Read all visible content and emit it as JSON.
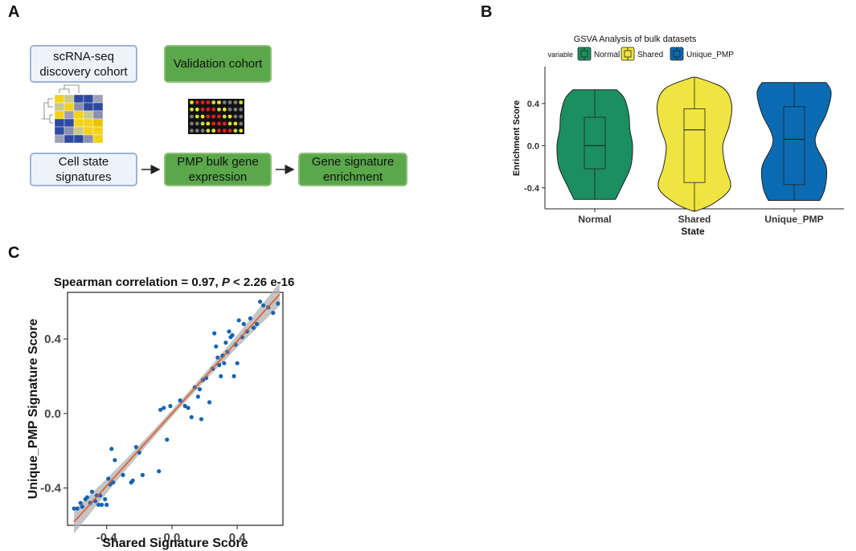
{
  "panels": {
    "a": "A",
    "b": "B",
    "c": "C"
  },
  "workflow": {
    "box1": "scRNA-seq discovery cohort",
    "box2": "Validation cohort",
    "box3": "Cell state signatures",
    "box4": "PMP bulk gene expression",
    "box5": "Gene signature enrichment"
  },
  "chart_data": [
    {
      "type": "violin",
      "title": "GSVA Analysis of bulk datasets",
      "legend_title": "variable",
      "legend_position": "top",
      "xlabel": "State",
      "ylabel": "Enrichment Score",
      "categories": [
        "Normal",
        "Shared",
        "Unique_PMP"
      ],
      "colors": [
        "#1b8f5f",
        "#f0e442",
        "#0a6bb3"
      ],
      "ylim": [
        -0.6,
        0.75
      ],
      "yticks": [
        -0.4,
        0.0,
        0.4
      ],
      "ytick_labels": [
        "-0.4",
        "0.0",
        "0.4"
      ],
      "series": [
        {
          "name": "Normal",
          "min": -0.51,
          "q1": -0.22,
          "median": 0.0,
          "q3": 0.27,
          "max": 0.53,
          "density": [
            [
              -0.51,
              0.55
            ],
            [
              -0.4,
              0.7
            ],
            [
              -0.2,
              0.95
            ],
            [
              0.0,
              1.0
            ],
            [
              0.15,
              0.93
            ],
            [
              0.3,
              0.9
            ],
            [
              0.45,
              0.78
            ],
            [
              0.53,
              0.58
            ]
          ]
        },
        {
          "name": "Shared",
          "min": -0.62,
          "q1": -0.35,
          "median": 0.15,
          "q3": 0.35,
          "max": 0.65,
          "density": [
            [
              -0.62,
              0.05
            ],
            [
              -0.55,
              0.5
            ],
            [
              -0.4,
              0.95
            ],
            [
              -0.2,
              0.82
            ],
            [
              0.0,
              0.75
            ],
            [
              0.2,
              0.93
            ],
            [
              0.4,
              0.98
            ],
            [
              0.55,
              0.75
            ],
            [
              0.65,
              0.05
            ]
          ]
        },
        {
          "name": "Unique_PMP",
          "min": -0.52,
          "q1": -0.37,
          "median": 0.06,
          "q3": 0.37,
          "max": 0.6,
          "density": [
            [
              -0.52,
              0.68
            ],
            [
              -0.4,
              0.82
            ],
            [
              -0.2,
              0.85
            ],
            [
              0.0,
              0.58
            ],
            [
              0.12,
              0.6
            ],
            [
              0.3,
              0.85
            ],
            [
              0.5,
              0.98
            ],
            [
              0.6,
              0.85
            ]
          ]
        }
      ]
    },
    {
      "type": "scatter",
      "title_prefix": "Spearman correlation = 0.97, ",
      "title_p": "P",
      "title_suffix": " < 2.26 e-16",
      "xlabel": "Shared Signature Score",
      "ylabel": "Unique_PMP Signature Score",
      "xlim": [
        -0.64,
        0.68
      ],
      "ylim": [
        -0.6,
        0.65
      ],
      "xticks": [
        -0.4,
        0.0,
        0.4
      ],
      "xtick_labels": [
        "-0.4",
        "0.0",
        "0.4"
      ],
      "yticks": [
        -0.4,
        0.0,
        0.4
      ],
      "ytick_labels": [
        "-0.4",
        "0.0",
        "0.4"
      ],
      "point_color": "#1565b0",
      "fit_color": "#e05a2a",
      "band_color": "#b0b0b0",
      "fit": {
        "slope": 0.97,
        "intercept": 0.0,
        "x_start": -0.6,
        "x_end": 0.66
      },
      "points": [
        [
          -0.6,
          -0.51
        ],
        [
          -0.58,
          -0.51
        ],
        [
          -0.56,
          -0.48
        ],
        [
          -0.55,
          -0.5
        ],
        [
          -0.53,
          -0.46
        ],
        [
          -0.52,
          -0.45
        ],
        [
          -0.5,
          -0.48
        ],
        [
          -0.49,
          -0.42
        ],
        [
          -0.47,
          -0.47
        ],
        [
          -0.46,
          -0.44
        ],
        [
          -0.45,
          -0.49
        ],
        [
          -0.44,
          -0.44
        ],
        [
          -0.43,
          -0.49
        ],
        [
          -0.41,
          -0.46
        ],
        [
          -0.4,
          -0.49
        ],
        [
          -0.39,
          -0.35
        ],
        [
          -0.37,
          -0.19
        ],
        [
          -0.38,
          -0.38
        ],
        [
          -0.36,
          -0.37
        ],
        [
          -0.35,
          -0.25
        ],
        [
          -0.3,
          -0.33
        ],
        [
          -0.25,
          -0.37
        ],
        [
          -0.24,
          -0.36
        ],
        [
          -0.22,
          -0.18
        ],
        [
          -0.2,
          -0.21
        ],
        [
          -0.18,
          -0.33
        ],
        [
          -0.08,
          -0.31
        ],
        [
          -0.07,
          0.02
        ],
        [
          -0.05,
          0.03
        ],
        [
          -0.03,
          -0.14
        ],
        [
          -0.01,
          0.04
        ],
        [
          0.05,
          0.07
        ],
        [
          0.08,
          0.04
        ],
        [
          0.1,
          0.03
        ],
        [
          0.12,
          -0.02
        ],
        [
          0.14,
          0.14
        ],
        [
          0.16,
          0.09
        ],
        [
          0.17,
          0.13
        ],
        [
          0.18,
          -0.03
        ],
        [
          0.19,
          0.18
        ],
        [
          0.21,
          0.19
        ],
        [
          0.23,
          0.06
        ],
        [
          0.25,
          0.24
        ],
        [
          0.26,
          0.43
        ],
        [
          0.27,
          0.36
        ],
        [
          0.28,
          0.3
        ],
        [
          0.29,
          0.26
        ],
        [
          0.3,
          0.2
        ],
        [
          0.31,
          0.31
        ],
        [
          0.32,
          0.27
        ],
        [
          0.33,
          0.38
        ],
        [
          0.34,
          0.33
        ],
        [
          0.35,
          0.44
        ],
        [
          0.36,
          0.41
        ],
        [
          0.37,
          0.42
        ],
        [
          0.38,
          0.2
        ],
        [
          0.39,
          0.37
        ],
        [
          0.4,
          0.27
        ],
        [
          0.41,
          0.5
        ],
        [
          0.43,
          0.41
        ],
        [
          0.44,
          0.48
        ],
        [
          0.46,
          0.44
        ],
        [
          0.48,
          0.51
        ],
        [
          0.5,
          0.46
        ],
        [
          0.52,
          0.48
        ],
        [
          0.54,
          0.6
        ],
        [
          0.56,
          0.58
        ],
        [
          0.59,
          0.57
        ],
        [
          0.62,
          0.54
        ],
        [
          0.65,
          0.59
        ]
      ]
    }
  ]
}
